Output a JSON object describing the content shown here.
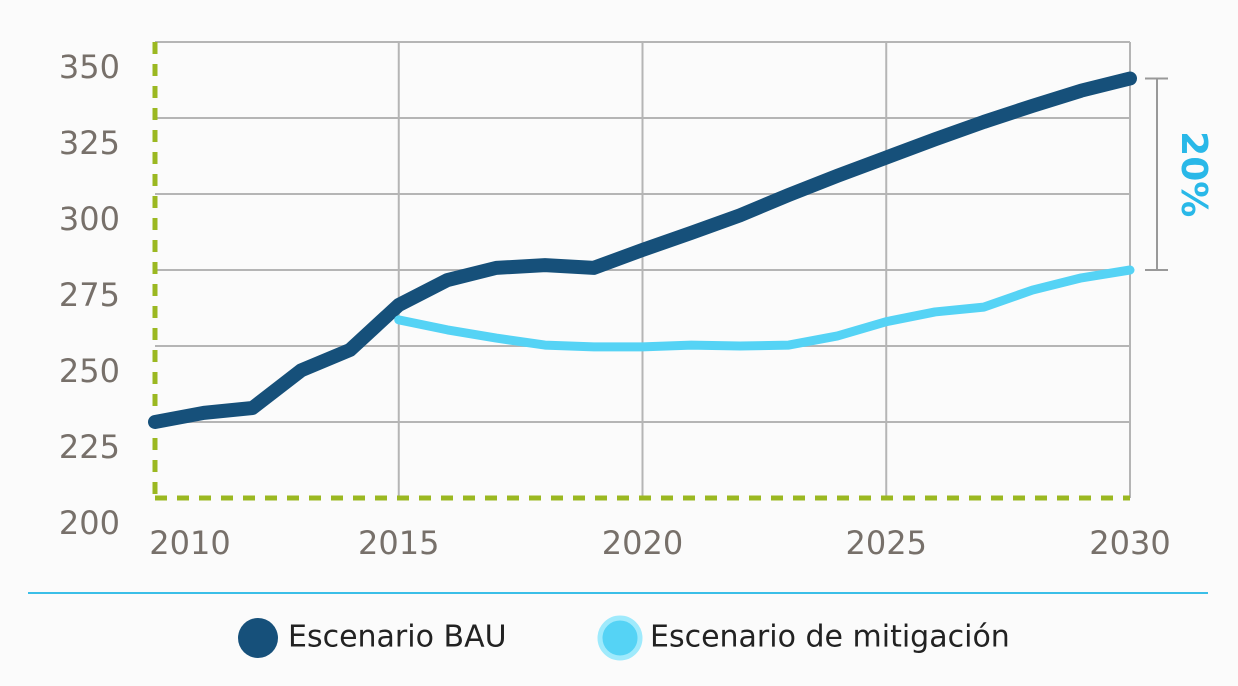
{
  "chart_data": {
    "type": "line",
    "x": [
      2010,
      2011,
      2012,
      2013,
      2014,
      2015,
      2016,
      2017,
      2018,
      2019,
      2020,
      2021,
      2022,
      2023,
      2024,
      2025,
      2026,
      2027,
      2028,
      2029,
      2030
    ],
    "series": [
      {
        "name": "Escenario BAU",
        "color": "#16507a",
        "values": [
          225,
          228,
          229.6,
          242,
          248.7,
          263.5,
          271.7,
          275.7,
          276.6,
          275.7,
          281.6,
          287.2,
          293,
          299.7,
          306,
          312,
          318,
          323.7,
          329,
          334,
          338
        ]
      },
      {
        "name": "Escenario de mitigación",
        "color": "#55d3f5",
        "values": [
          null,
          null,
          null,
          null,
          null,
          258.6,
          255.3,
          252.6,
          250.3,
          249.7,
          249.7,
          250.3,
          250,
          250.3,
          253.3,
          258,
          261.2,
          262.8,
          268.4,
          272.4,
          275
        ]
      }
    ],
    "xlim": [
      2010,
      2030
    ],
    "xticks": [
      2010,
      2015,
      2020,
      2025,
      2030
    ],
    "ylim": [
      200,
      350
    ],
    "yticks": [
      200,
      225,
      250,
      275,
      300,
      325,
      350
    ],
    "grid": true,
    "annotation": "20%",
    "annotation_color": "#29b8e8"
  }
}
